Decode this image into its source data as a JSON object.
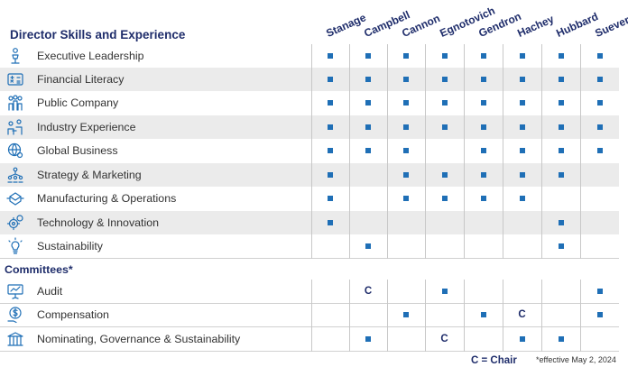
{
  "title": "Director Skills and Experience",
  "directors": [
    "Stanage",
    "Campbell",
    "Cannon",
    "Egnotovich",
    "Gendron",
    "Hachey",
    "Hubbard",
    "Suever"
  ],
  "skills": [
    {
      "label": "Executive Leadership",
      "icon": "person-podium-icon",
      "marks": [
        1,
        1,
        1,
        1,
        1,
        1,
        1,
        1
      ]
    },
    {
      "label": "Financial Literacy",
      "icon": "calculator-icon",
      "marks": [
        1,
        1,
        1,
        1,
        1,
        1,
        1,
        1
      ]
    },
    {
      "label": "Public Company",
      "icon": "group-people-icon",
      "marks": [
        1,
        1,
        1,
        1,
        1,
        1,
        1,
        1
      ]
    },
    {
      "label": "Industry Experience",
      "icon": "people-meeting-icon",
      "marks": [
        1,
        1,
        1,
        1,
        1,
        1,
        1,
        1
      ]
    },
    {
      "label": "Global Business",
      "icon": "globe-gear-icon",
      "marks": [
        1,
        1,
        1,
        0,
        1,
        1,
        1,
        1
      ]
    },
    {
      "label": "Strategy & Marketing",
      "icon": "strategy-people-icon",
      "marks": [
        1,
        0,
        1,
        1,
        1,
        1,
        1,
        0
      ]
    },
    {
      "label": "Manufacturing & Operations",
      "icon": "box-arrows-icon",
      "marks": [
        1,
        0,
        1,
        1,
        1,
        1,
        0,
        0
      ]
    },
    {
      "label": "Technology & Innovation",
      "icon": "gears-icon",
      "marks": [
        1,
        0,
        0,
        0,
        0,
        0,
        1,
        0
      ]
    },
    {
      "label": "Sustainability",
      "icon": "lightbulb-icon",
      "marks": [
        0,
        1,
        0,
        0,
        0,
        0,
        1,
        0
      ]
    }
  ],
  "committees_title": "Committees*",
  "committees": [
    {
      "label": "Audit",
      "icon": "presentation-board-icon",
      "marks": [
        "",
        "C",
        "",
        "x",
        "",
        "",
        "",
        "x"
      ]
    },
    {
      "label": "Compensation",
      "icon": "money-hand-icon",
      "marks": [
        "",
        "",
        "x",
        "",
        "x",
        "C",
        "",
        "x"
      ]
    },
    {
      "label": "Nominating, Governance & Sustainability",
      "icon": "building-columns-icon",
      "marks": [
        "",
        "x",
        "",
        "C",
        "",
        "x",
        "x",
        ""
      ]
    }
  ],
  "legend": "C = Chair",
  "footnote": "*effective May 2, 2024",
  "colors": {
    "navy": "#1f2d6b",
    "blue": "#1f6fb6",
    "shade": "#ebebeb"
  }
}
